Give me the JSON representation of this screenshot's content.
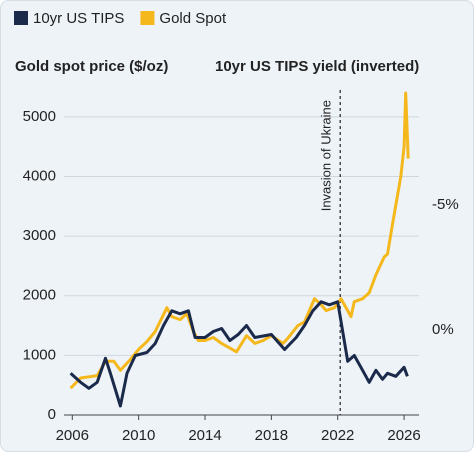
{
  "chart_data": {
    "type": "line",
    "y_label": "Gold spot price ($/oz)",
    "y2_label": "10yr US TIPS yield (inverted)",
    "xlim": [
      2005.5,
      2026.9
    ],
    "xticks": [
      2006,
      2010,
      2014,
      2018,
      2022,
      2026
    ],
    "ylim": [
      0,
      5450
    ],
    "yticks": [
      0,
      1000,
      2000,
      3000,
      4000,
      5000
    ],
    "y2lim": [
      3.4,
      -9.6
    ],
    "y2ticks": [
      {
        "value": -5,
        "label": "-5%"
      },
      {
        "value": 0,
        "label": "0%"
      }
    ],
    "grid": true,
    "legend": "top-left",
    "annotation": {
      "text": "Invasion of Ukraine",
      "x": 2022.15
    },
    "series": [
      {
        "name": "10yr US TIPS",
        "color": "#1b2a4a",
        "axis": "y2",
        "x": [
          2005.9,
          2006.5,
          2007,
          2007.5,
          2008,
          2008.3,
          2008.9,
          2009.3,
          2009.8,
          2010.5,
          2011,
          2011.5,
          2012,
          2012.5,
          2013,
          2013.4,
          2014,
          2014.5,
          2015,
          2015.5,
          2016,
          2016.5,
          2017,
          2018,
          2018.8,
          2019.5,
          2020,
          2020.5,
          2021,
          2021.5,
          2022,
          2022.3,
          2022.6,
          2023,
          2023.5,
          2023.9,
          2024.3,
          2024.7,
          2025,
          2025.5,
          2026,
          2026.2
        ],
        "values": [
          1.73,
          2.09,
          2.33,
          2.09,
          1.13,
          1.73,
          3.04,
          1.73,
          1.02,
          0.9,
          0.54,
          -0.18,
          -0.77,
          -0.65,
          -0.77,
          0.3,
          0.3,
          0.06,
          -0.06,
          0.42,
          0.18,
          -0.18,
          0.3,
          0.18,
          0.78,
          0.3,
          -0.18,
          -0.77,
          -1.13,
          -1.01,
          -1.13,
          0.06,
          1.25,
          1.02,
          1.61,
          2.09,
          1.61,
          1.97,
          1.73,
          1.85,
          1.49,
          1.85
        ]
      },
      {
        "name": "Gold Spot",
        "color": "#f5b81c",
        "x": [
          2005.9,
          2006.5,
          2007,
          2007.5,
          2008,
          2008.5,
          2008.9,
          2009.5,
          2010,
          2010.5,
          2011,
          2011.7,
          2012,
          2012.5,
          2012.9,
          2013.3,
          2013.6,
          2014,
          2014.5,
          2015,
          2015.9,
          2016.5,
          2017,
          2017.5,
          2018,
          2018.7,
          2019,
          2019.6,
          2020,
          2020.6,
          2021,
          2021.3,
          2021.8,
          2022.2,
          2022.8,
          2023,
          2023.5,
          2023.9,
          2024.3,
          2024.8,
          2025,
          2025.3,
          2025.8,
          2026,
          2026.1,
          2026.25
        ],
        "values": [
          450,
          620,
          640,
          660,
          900,
          900,
          750,
          930,
          1100,
          1230,
          1400,
          1800,
          1650,
          1600,
          1700,
          1400,
          1250,
          1250,
          1300,
          1200,
          1060,
          1330,
          1200,
          1250,
          1330,
          1200,
          1290,
          1500,
          1560,
          1950,
          1850,
          1750,
          1800,
          1950,
          1650,
          1900,
          1950,
          2050,
          2350,
          2650,
          2700,
          3200,
          4000,
          4500,
          5400,
          4300
        ]
      }
    ]
  }
}
